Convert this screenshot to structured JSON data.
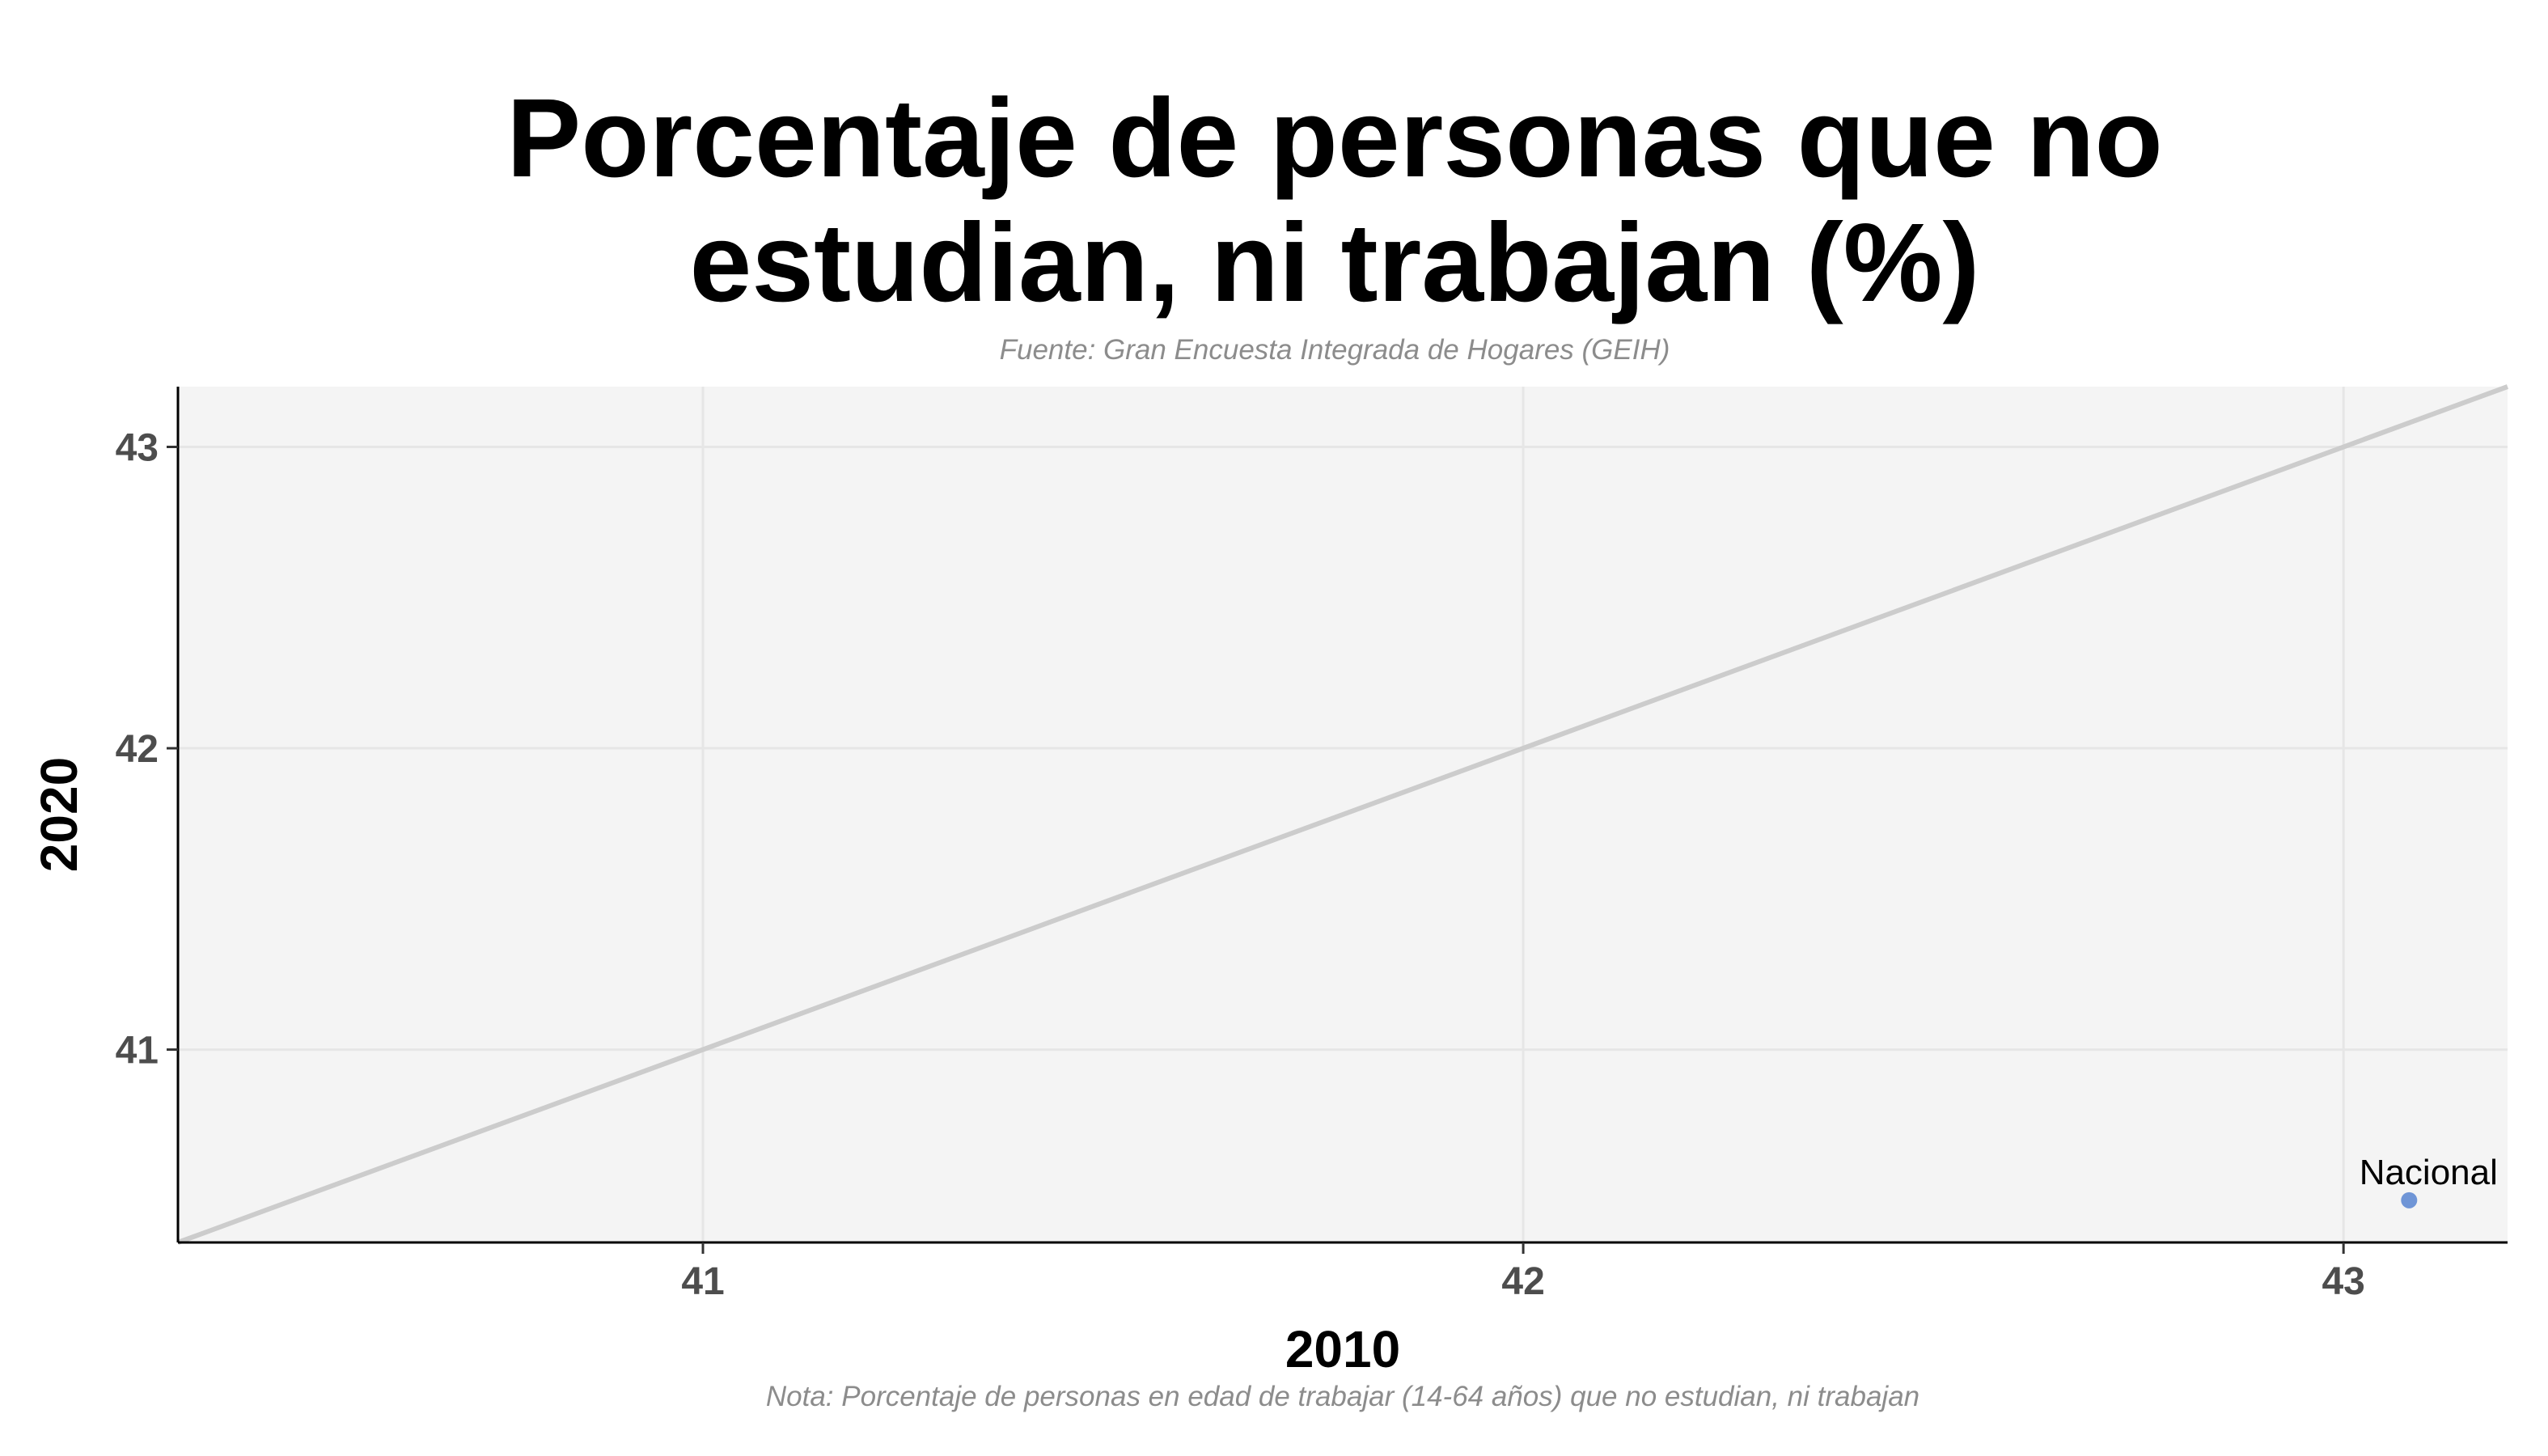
{
  "chart_data": {
    "type": "scatter",
    "title_lines": [
      "Porcentaje de personas que no",
      "estudian, ni trabajan (%)"
    ],
    "subtitle": "Fuente: Gran Encuesta Integrada de Hogares (GEIH)",
    "note": "Nota: Porcentaje de personas en edad de trabajar (14-64 años) que no estudian, ni trabajan",
    "xlabel": "2010",
    "ylabel": "2020",
    "xlim": [
      40.36,
      43.2
    ],
    "ylim": [
      40.36,
      43.2
    ],
    "x_ticks": [
      41,
      42,
      43
    ],
    "y_ticks": [
      41,
      42,
      43
    ],
    "reference_line": "y = x",
    "grid": true,
    "points": [
      {
        "label": "Nacional",
        "x": 43.08,
        "y": 40.5
      }
    ],
    "colors": {
      "panel_background": "#f4f4f4",
      "grid": "#e6e6e6",
      "reference_line": "#cccccc",
      "point": "#6f95d6"
    }
  }
}
